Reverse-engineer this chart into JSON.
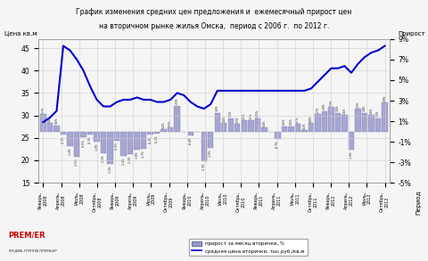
{
  "title_line1": "График изменения средних цен предложения и  ежемесячный прирост цен",
  "title_line2": "на вторичном рынке жилья Омска,  период с 2006 г.  по 2012 г.",
  "ylabel_left": "Цена кв.м",
  "ylabel_right": "Прирост",
  "xlabel": "Период",
  "legend_bar": "прирост за месяц вторички, %",
  "legend_line": "средняя цена вторички, тыс.руб./кв.м",
  "x_labels": [
    "Январь,\n2008",
    "Апрель,\n2008",
    "Июль,\n2008",
    "Октябрь,\n2008",
    "Январь,\n2009",
    "Апрель,\n2009",
    "Июль,\n2009",
    "Октябрь,\n2009",
    "Январь,\n2010",
    "Апрель,\n2010",
    "Июль,\n2010",
    "Октябрь,\n2010",
    "Январь,\n2011",
    "Апрель,\n2011",
    "Июль,\n2011",
    "Октябрь,\n2011",
    "Январь,\n2012",
    "Апрель,\n2012",
    "Июль,\n2012",
    "Октябрь,\n2012"
  ],
  "bar_values": [
    1.7,
    0.8,
    0.6,
    -0.3,
    -1.4,
    -2.5,
    -0.6,
    -0.3,
    -1.0,
    -2.1,
    -3.2,
    -0.9,
    -2.4,
    -2.2,
    -1.8,
    -1.7,
    -0.3,
    -0.2,
    0.2,
    0.4,
    2.5,
    0.0,
    -0.4,
    0.0,
    -2.9,
    -1.6,
    1.8,
    0.8,
    1.3,
    0.7,
    1.1,
    1.1,
    1.25,
    0.4,
    0.0,
    -0.7,
    0.5,
    0.5,
    0.7,
    0.1,
    0.8,
    1.7,
    2.0,
    2.4,
    1.8,
    1.6,
    -1.8,
    2.2,
    1.8,
    1.6,
    1.3,
    2.8
  ],
  "line_values": [
    28.5,
    29.5,
    31.0,
    45.5,
    44.5,
    42.5,
    40.0,
    36.5,
    33.5,
    32.0,
    32.0,
    33.0,
    33.5,
    33.5,
    34.0,
    33.5,
    33.5,
    33.0,
    33.0,
    33.5,
    35.0,
    34.5,
    33.0,
    32.0,
    31.5,
    32.5,
    35.5,
    35.5,
    35.5,
    35.5,
    35.5,
    35.5,
    35.5,
    35.5,
    35.5,
    35.5,
    35.5,
    35.5,
    35.5,
    35.5,
    36.0,
    37.5,
    39.0,
    40.5,
    40.5,
    41.0,
    39.5,
    41.5,
    43.0,
    44.0,
    44.5,
    45.5
  ],
  "bar_color": "#9999cc",
  "bar_edge_color": "#7777aa",
  "line_color": "#0000cc",
  "background_color": "#f5f5f5",
  "grid_color": "#cccccc",
  "ylim_left": [
    15,
    47
  ],
  "ylim_right": [
    -5,
    9
  ],
  "yticks_left": [
    15,
    20,
    25,
    30,
    35,
    40,
    45
  ],
  "yticks_right": [
    -5,
    -3,
    -1,
    1,
    3,
    5,
    7,
    9
  ]
}
